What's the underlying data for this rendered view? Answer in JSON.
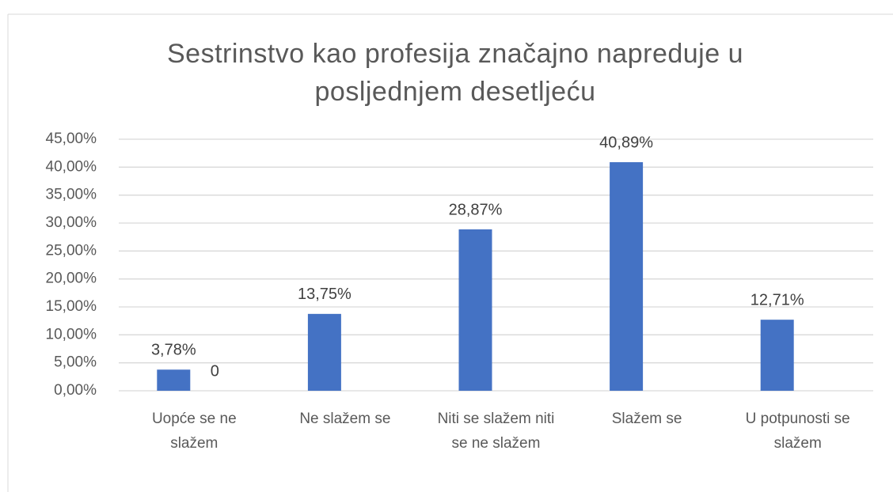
{
  "chart_data": {
    "type": "bar",
    "title": "Sestrinstvo kao profesija značajno napreduje u posljednjem desetljeću",
    "categories": [
      "Uopće se ne slažem",
      "Ne slažem se",
      "Niti se slažem niti se ne slažem",
      "Slažem se",
      "U potpunosti se slažem"
    ],
    "series": [
      {
        "color": "#4472c4",
        "values": [
          3.78,
          13.75,
          28.87,
          40.89,
          12.71
        ],
        "value_labels": [
          "3,78%",
          "13,75%",
          "28,87%",
          "40,89%",
          "12,71%"
        ]
      },
      {
        "color": "#ed7d31",
        "values": [
          0,
          null,
          null,
          null,
          null
        ]
      }
    ],
    "ylim": [
      0,
      45
    ],
    "yticks": [
      {
        "value": 0,
        "label": "0,00%"
      },
      {
        "value": 5,
        "label": "5,00%"
      },
      {
        "value": 10,
        "label": "10,00%"
      },
      {
        "value": 15,
        "label": "15,00%"
      },
      {
        "value": 20,
        "label": "20,00%"
      },
      {
        "value": 25,
        "label": "25,00%"
      },
      {
        "value": 30,
        "label": "30,00%"
      },
      {
        "value": 35,
        "label": "35,00%"
      },
      {
        "value": 40,
        "label": "40,00%"
      },
      {
        "value": 45,
        "label": "45,00%"
      }
    ],
    "grid": true
  }
}
